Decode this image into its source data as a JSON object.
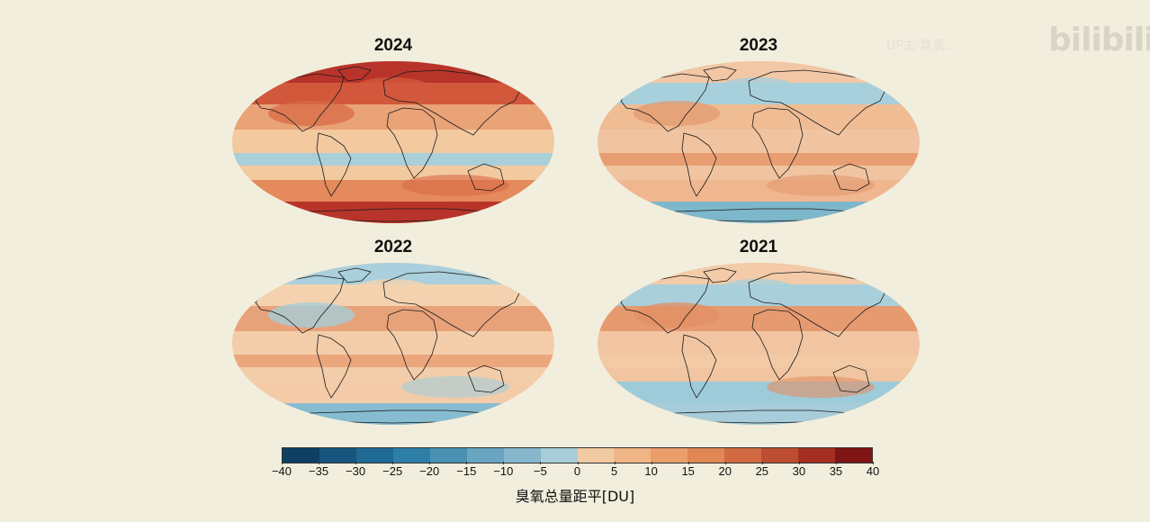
{
  "maps": [
    {
      "year": "2024",
      "palette": {
        "base": "#f3c9a0",
        "north": "#b8342a",
        "north2": "#d2583c",
        "mid": "#eaa277",
        "equator": "#a9cfd8",
        "south": "#e48a5c",
        "south2": "#b8342a",
        "blob": "#d86b46"
      }
    },
    {
      "year": "2023",
      "palette": {
        "base": "#f0c4a0",
        "north": "#f1c7a6",
        "north2": "#a8cfdc",
        "mid": "#efbc94",
        "equator": "#e89e72",
        "south": "#efb690",
        "south2": "#7db7cc",
        "blob": "#e39a6f"
      }
    },
    {
      "year": "2022",
      "palette": {
        "base": "#f3cda9",
        "north": "#a9d0dc",
        "north2": "#f4d2b0",
        "mid": "#e8a27a",
        "equator": "#eca67c",
        "south": "#f3cba8",
        "south2": "#87bcd0",
        "blob": "#a3cddc"
      }
    },
    {
      "year": "2021",
      "palette": {
        "base": "#f1c5a1",
        "north": "#f3cba8",
        "north2": "#a9cfdb",
        "mid": "#e69a70",
        "equator": "#f3caa6",
        "south": "#9ecbd9",
        "south2": "#a6cdd9",
        "blob": "#e28d63"
      }
    }
  ],
  "colorbar": {
    "colors": [
      "#0e3f64",
      "#17557f",
      "#1f6b96",
      "#2d7fa8",
      "#4990b2",
      "#68a5c1",
      "#86b7cc",
      "#a6cdd8",
      "#f2caa2",
      "#efb585",
      "#ea9e6a",
      "#e18655",
      "#d16a42",
      "#bd4d31",
      "#a42e22",
      "#7f1414"
    ],
    "ticks": [
      "−40",
      "−35",
      "−30",
      "−25",
      "−20",
      "−15",
      "−10",
      "−5",
      "0",
      "5",
      "10",
      "15",
      "20",
      "25",
      "30",
      "35",
      "40"
    ],
    "label": "臭氧总量距平[DU]"
  },
  "watermark": {
    "logo": "bilibili",
    "text": "UP主·臭氧..."
  }
}
